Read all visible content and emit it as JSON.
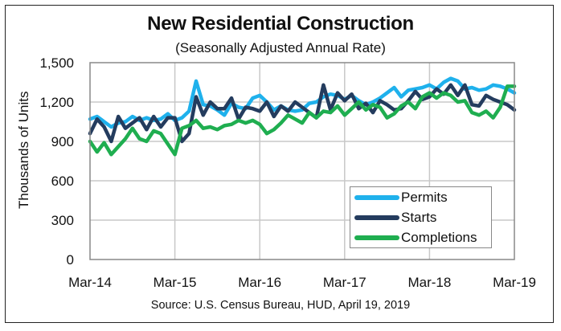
{
  "chart_data": {
    "type": "line",
    "title": "New Residential Construction",
    "subtitle": "(Seasonally Adjusted Annual Rate)",
    "xlabel": "",
    "ylabel": "Thousands of Units",
    "ylim": [
      0,
      1500
    ],
    "yticks": [
      0,
      300,
      600,
      900,
      1200,
      1500
    ],
    "ytick_labels": [
      "0",
      "300",
      "600",
      "900",
      "1,200",
      "1,500"
    ],
    "xtick_labels": [
      "Mar-14",
      "Mar-15",
      "Mar-16",
      "Mar-17",
      "Mar-18",
      "Mar-19"
    ],
    "x_start": "Mar-14",
    "x_end": "Mar-19",
    "frequency": "monthly",
    "grid": true,
    "legend_position": "bottom-right",
    "source": "Source:  U.S. Census Bureau, HUD, April 19, 2019",
    "series": [
      {
        "name": "Permits",
        "color": "#1fb1ec",
        "values": [
          1070,
          1090,
          1050,
          1010,
          1040,
          1050,
          1090,
          1060,
          1080,
          1060,
          1070,
          1110,
          1060,
          1080,
          1130,
          1360,
          1180,
          1170,
          1140,
          1100,
          1190,
          1160,
          1150,
          1230,
          1250,
          1200,
          1140,
          1170,
          1140,
          1130,
          1140,
          1190,
          1200,
          1240,
          1260,
          1250,
          1220,
          1250,
          1210,
          1180,
          1200,
          1230,
          1270,
          1310,
          1240,
          1290,
          1300,
          1310,
          1330,
          1300,
          1350,
          1380,
          1360,
          1300,
          1310,
          1290,
          1300,
          1330,
          1320,
          1300,
          1270
        ],
        "note": "approximate values read from chart"
      },
      {
        "name": "Starts",
        "color": "#243c5e",
        "values": [
          960,
          1070,
          1010,
          900,
          1090,
          1000,
          1040,
          1080,
          990,
          1090,
          1010,
          1080,
          1080,
          900,
          960,
          1240,
          1100,
          1200,
          1150,
          1150,
          1230,
          1070,
          1160,
          1150,
          1130,
          1200,
          1090,
          1170,
          1130,
          1200,
          1160,
          1120,
          1080,
          1330,
          1140,
          1270,
          1210,
          1260,
          1150,
          1190,
          1120,
          1210,
          1180,
          1140,
          1150,
          1210,
          1280,
          1220,
          1240,
          1300,
          1260,
          1330,
          1250,
          1330,
          1180,
          1170,
          1250,
          1220,
          1200,
          1180,
          1140
        ],
        "note": "approximate values read from chart"
      },
      {
        "name": "Completions",
        "color": "#1fae50",
        "values": [
          900,
          820,
          890,
          800,
          860,
          920,
          1000,
          920,
          900,
          980,
          960,
          880,
          800,
          1000,
          1020,
          1060,
          1000,
          1010,
          990,
          1020,
          1030,
          1060,
          1040,
          1060,
          1030,
          960,
          990,
          1040,
          1100,
          1070,
          1040,
          1120,
          1080,
          1130,
          1120,
          1170,
          1100,
          1150,
          1200,
          1140,
          1180,
          1160,
          1080,
          1110,
          1170,
          1200,
          1150,
          1240,
          1270,
          1230,
          1270,
          1250,
          1200,
          1210,
          1120,
          1100,
          1130,
          1080,
          1160,
          1320,
          1320
        ],
        "note": "approximate values read from chart"
      }
    ]
  }
}
